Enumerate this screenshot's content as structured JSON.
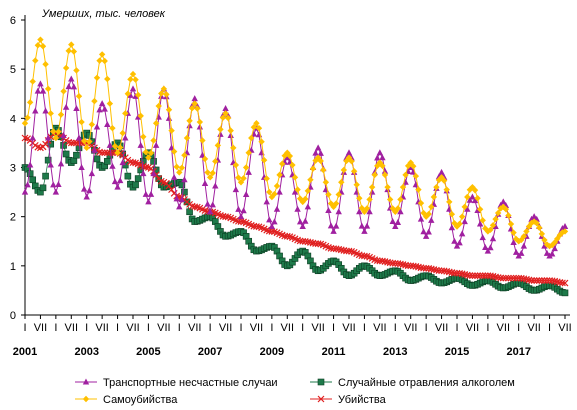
{
  "chart_data": {
    "type": "line",
    "ylabel": "Умерших, тыс. человек",
    "xlabel": "",
    "ylim": [
      0,
      6
    ],
    "yticks": [
      0,
      1,
      2,
      3,
      4,
      5,
      6
    ],
    "grid": false,
    "legend_position": "bottom",
    "month_tick_labels": [
      "I",
      "VII"
    ],
    "year_labels": [
      "2001",
      "2003",
      "2005",
      "2007",
      "2009",
      "2011",
      "2013",
      "2015",
      "2017"
    ],
    "x_start": "2001-01",
    "x_end": "2018-07",
    "series": [
      {
        "name": "Транспортные несчастные случаи",
        "color": "#a020a0",
        "marker": "triangle",
        "anchors": [
          [
            2001.0,
            2.5
          ],
          [
            2001.5,
            4.7
          ],
          [
            2002.0,
            2.5
          ],
          [
            2002.5,
            4.8
          ],
          [
            2003.0,
            2.4
          ],
          [
            2003.5,
            4.3
          ],
          [
            2004.0,
            2.6
          ],
          [
            2004.5,
            4.6
          ],
          [
            2005.0,
            2.3
          ],
          [
            2005.5,
            4.6
          ],
          [
            2006.0,
            2.2
          ],
          [
            2006.5,
            4.4
          ],
          [
            2007.0,
            2.1
          ],
          [
            2007.5,
            4.2
          ],
          [
            2008.0,
            2.0
          ],
          [
            2008.5,
            3.8
          ],
          [
            2009.0,
            1.8
          ],
          [
            2009.5,
            3.2
          ],
          [
            2010.0,
            1.8
          ],
          [
            2010.5,
            3.4
          ],
          [
            2011.0,
            1.7
          ],
          [
            2011.5,
            3.3
          ],
          [
            2012.0,
            1.7
          ],
          [
            2012.5,
            3.3
          ],
          [
            2013.0,
            1.8
          ],
          [
            2013.5,
            3.0
          ],
          [
            2014.0,
            1.6
          ],
          [
            2014.5,
            2.9
          ],
          [
            2015.0,
            1.4
          ],
          [
            2015.5,
            2.4
          ],
          [
            2016.0,
            1.3
          ],
          [
            2016.5,
            2.3
          ],
          [
            2017.0,
            1.2
          ],
          [
            2017.5,
            2.0
          ],
          [
            2018.0,
            1.2
          ],
          [
            2018.5,
            1.8
          ]
        ]
      },
      {
        "name": "Случайные отравления алкоголем",
        "color": "#1e7a4a",
        "marker": "square",
        "anchors": [
          [
            2001.0,
            3.0
          ],
          [
            2001.5,
            2.5
          ],
          [
            2002.0,
            3.8
          ],
          [
            2002.5,
            3.1
          ],
          [
            2003.0,
            3.7
          ],
          [
            2003.5,
            3.0
          ],
          [
            2004.0,
            3.5
          ],
          [
            2004.5,
            2.6
          ],
          [
            2005.0,
            3.3
          ],
          [
            2005.5,
            2.6
          ],
          [
            2006.0,
            2.7
          ],
          [
            2006.5,
            1.9
          ],
          [
            2007.0,
            2.0
          ],
          [
            2007.5,
            1.6
          ],
          [
            2008.0,
            1.7
          ],
          [
            2008.5,
            1.3
          ],
          [
            2009.0,
            1.4
          ],
          [
            2009.5,
            1.0
          ],
          [
            2010.0,
            1.3
          ],
          [
            2010.5,
            0.9
          ],
          [
            2011.0,
            1.1
          ],
          [
            2011.5,
            0.8
          ],
          [
            2012.0,
            1.0
          ],
          [
            2012.5,
            0.8
          ],
          [
            2013.0,
            0.9
          ],
          [
            2013.5,
            0.7
          ],
          [
            2014.0,
            0.8
          ],
          [
            2014.5,
            0.65
          ],
          [
            2015.0,
            0.75
          ],
          [
            2015.5,
            0.6
          ],
          [
            2016.0,
            0.7
          ],
          [
            2016.5,
            0.55
          ],
          [
            2017.0,
            0.65
          ],
          [
            2017.5,
            0.5
          ],
          [
            2018.0,
            0.6
          ],
          [
            2018.5,
            0.45
          ]
        ]
      },
      {
        "name": "Самоубийства",
        "color": "#ffc000",
        "marker": "diamond",
        "anchors": [
          [
            2001.0,
            3.9
          ],
          [
            2001.5,
            5.6
          ],
          [
            2002.0,
            3.6
          ],
          [
            2002.5,
            5.5
          ],
          [
            2003.0,
            3.4
          ],
          [
            2003.5,
            5.3
          ],
          [
            2004.0,
            3.3
          ],
          [
            2004.5,
            4.9
          ],
          [
            2005.0,
            3.2
          ],
          [
            2005.5,
            4.6
          ],
          [
            2006.0,
            2.9
          ],
          [
            2006.5,
            4.3
          ],
          [
            2007.0,
            2.8
          ],
          [
            2007.5,
            4.1
          ],
          [
            2008.0,
            2.7
          ],
          [
            2008.5,
            3.9
          ],
          [
            2009.0,
            2.4
          ],
          [
            2009.5,
            3.3
          ],
          [
            2010.0,
            2.3
          ],
          [
            2010.5,
            3.2
          ],
          [
            2011.0,
            2.2
          ],
          [
            2011.5,
            3.2
          ],
          [
            2012.0,
            2.1
          ],
          [
            2012.5,
            3.1
          ],
          [
            2013.0,
            2.1
          ],
          [
            2013.5,
            3.1
          ],
          [
            2014.0,
            2.0
          ],
          [
            2014.5,
            2.8
          ],
          [
            2015.0,
            1.8
          ],
          [
            2015.5,
            2.6
          ],
          [
            2016.0,
            1.7
          ],
          [
            2016.5,
            2.2
          ],
          [
            2017.0,
            1.5
          ],
          [
            2017.5,
            1.9
          ],
          [
            2018.0,
            1.4
          ],
          [
            2018.5,
            1.7
          ]
        ]
      },
      {
        "name": "Убийства",
        "color": "#e02020",
        "marker": "x",
        "anchors": [
          [
            2001.0,
            3.6
          ],
          [
            2001.5,
            3.4
          ],
          [
            2002.0,
            3.7
          ],
          [
            2002.5,
            3.5
          ],
          [
            2003.0,
            3.5
          ],
          [
            2003.5,
            3.3
          ],
          [
            2004.0,
            3.3
          ],
          [
            2004.5,
            3.1
          ],
          [
            2005.0,
            3.0
          ],
          [
            2005.5,
            2.7
          ],
          [
            2006.0,
            2.4
          ],
          [
            2006.5,
            2.2
          ],
          [
            2007.0,
            2.1
          ],
          [
            2007.5,
            2.0
          ],
          [
            2008.0,
            1.9
          ],
          [
            2008.5,
            1.8
          ],
          [
            2009.0,
            1.7
          ],
          [
            2009.5,
            1.6
          ],
          [
            2010.0,
            1.5
          ],
          [
            2010.5,
            1.45
          ],
          [
            2011.0,
            1.35
          ],
          [
            2011.5,
            1.3
          ],
          [
            2012.0,
            1.2
          ],
          [
            2012.5,
            1.1
          ],
          [
            2013.0,
            1.05
          ],
          [
            2013.5,
            1.0
          ],
          [
            2014.0,
            0.95
          ],
          [
            2014.5,
            0.9
          ],
          [
            2015.0,
            0.85
          ],
          [
            2015.5,
            0.8
          ],
          [
            2016.0,
            0.8
          ],
          [
            2016.5,
            0.75
          ],
          [
            2017.0,
            0.75
          ],
          [
            2017.5,
            0.7
          ],
          [
            2018.0,
            0.7
          ],
          [
            2018.5,
            0.65
          ]
        ]
      }
    ]
  }
}
